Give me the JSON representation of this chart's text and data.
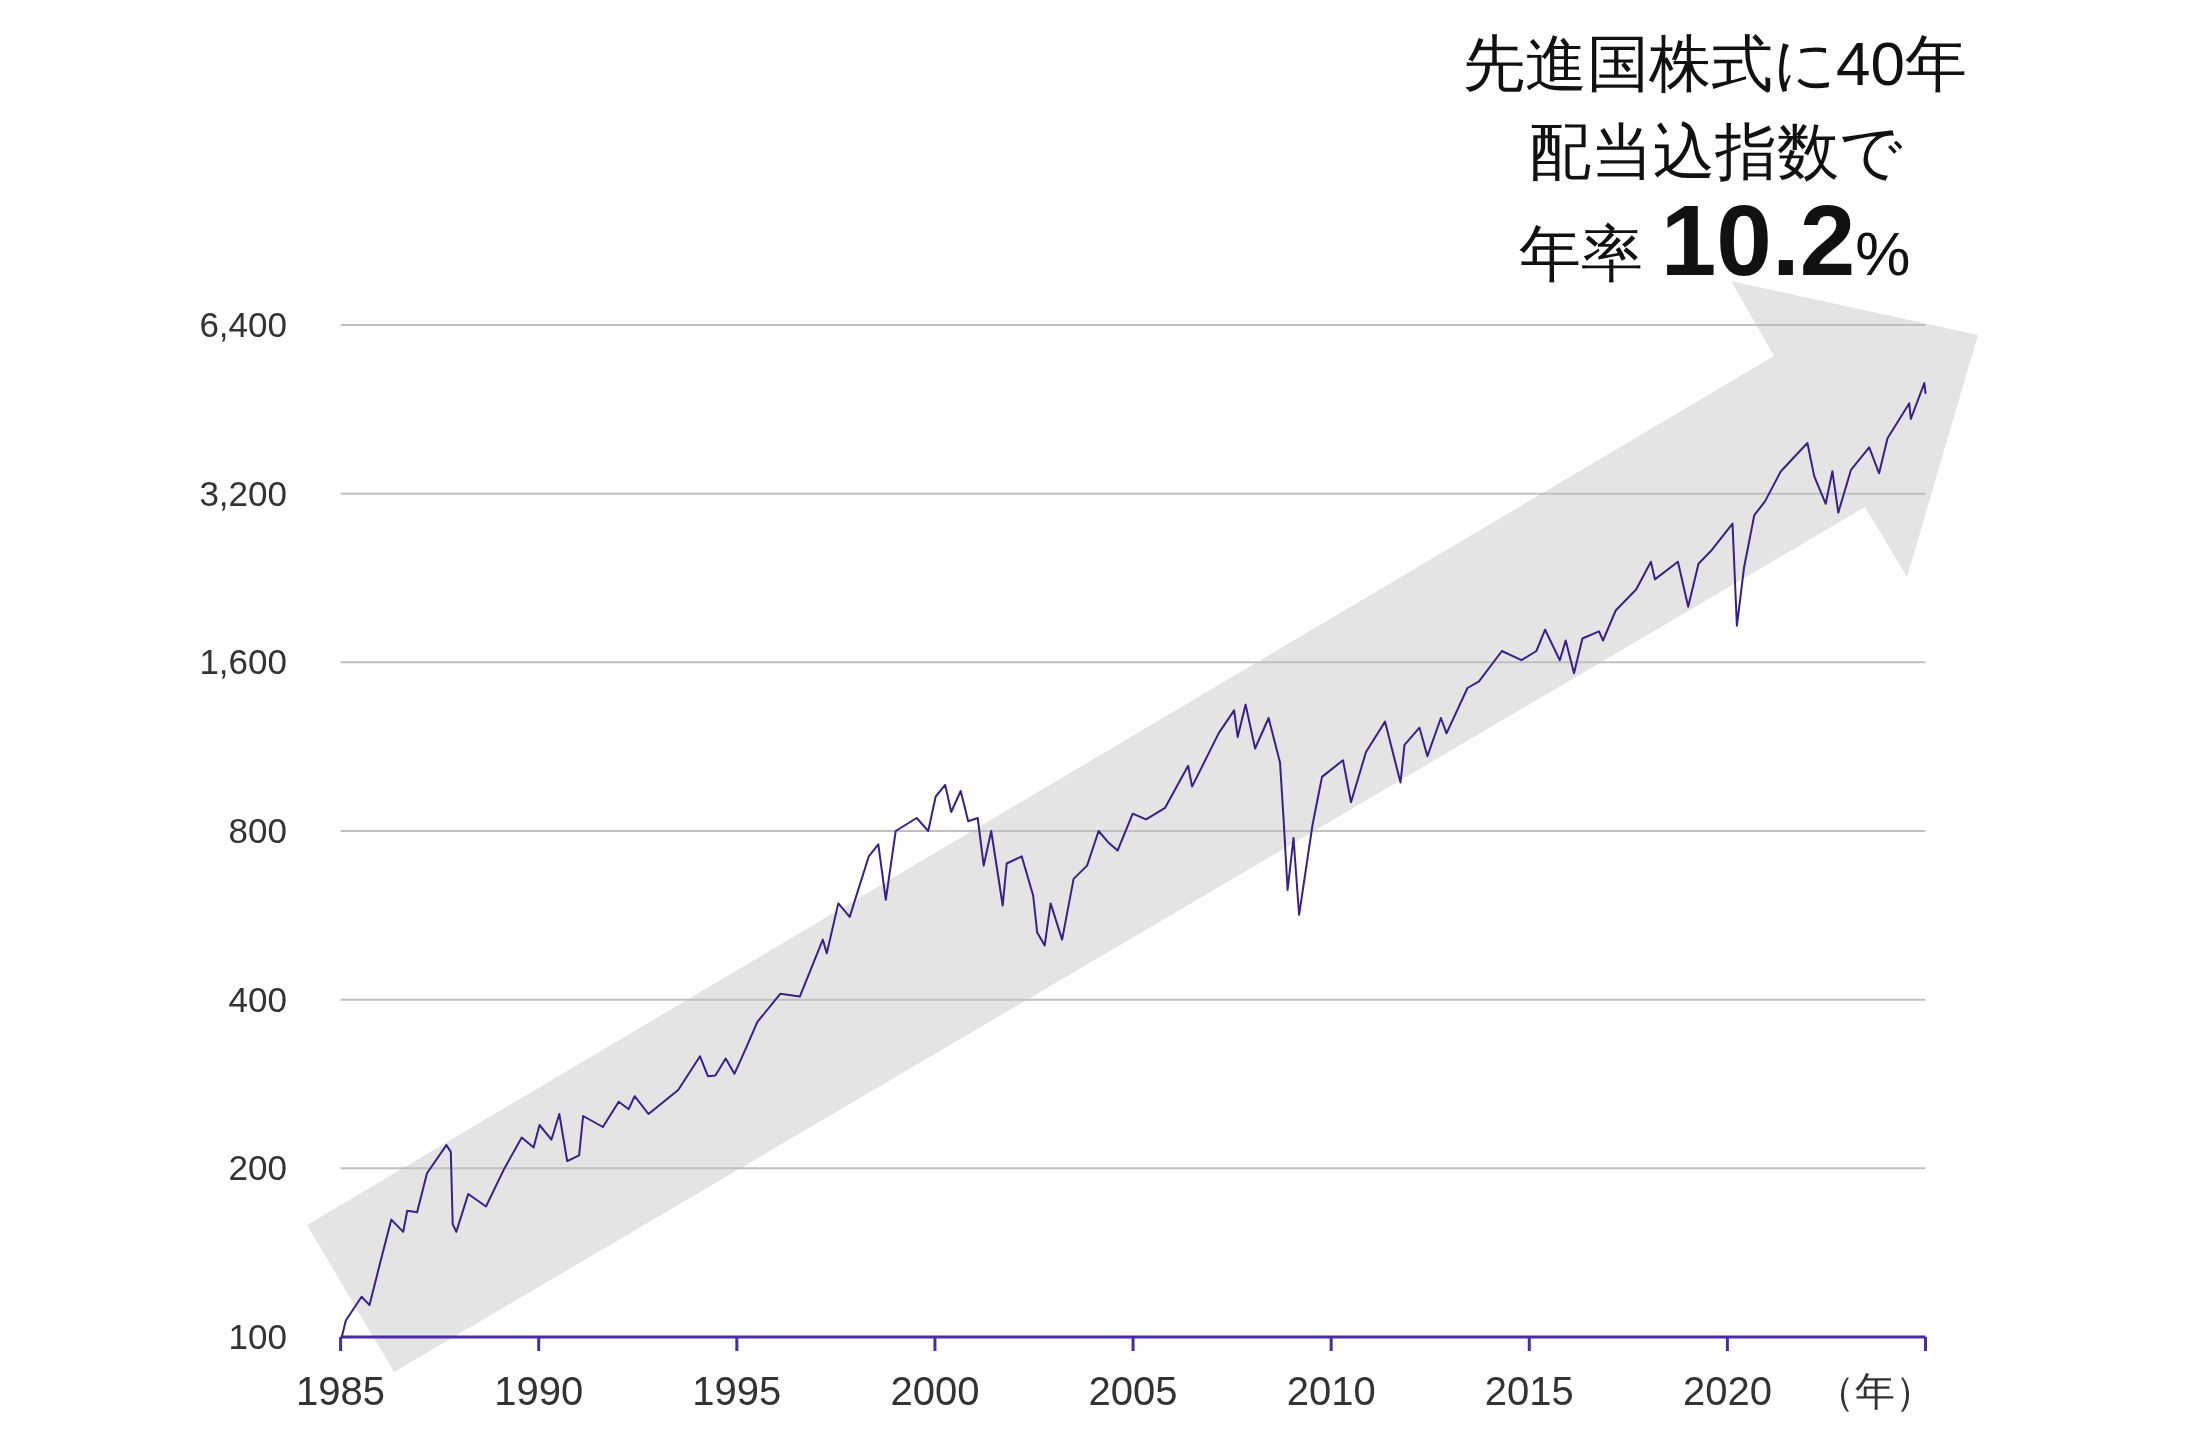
{
  "chart_data": {
    "type": "line",
    "title": "先進国株式に40年配当込指数で",
    "subtitle": "年率 10.2%",
    "xlabel": "（年）",
    "log": true,
    "grid": "y",
    "marker": "none",
    "line_style": "solid",
    "xlim": [
      1985,
      2025
    ],
    "xticks": [
      1985,
      1990,
      1995,
      2000,
      2005,
      2010,
      2015,
      2020,
      {
        "value": 2025,
        "label": null
      }
    ],
    "ylim": [
      100,
      6400
    ],
    "yticks": [
      100,
      200,
      400,
      800,
      {
        "value": 1600,
        "label": "1,600"
      },
      {
        "value": 3200,
        "label": "3,200"
      },
      {
        "value": 6400,
        "label": "6,400"
      }
    ],
    "series": [
      {
        "color": "#3b1e8a",
        "x": [
          1985.03,
          1985.13,
          1985.53,
          1985.73,
          1985.98,
          1986.28,
          1986.58,
          1986.68,
          1986.93,
          1987.18,
          1987.67,
          1987.78,
          1987.83,
          1987.92,
          1988.22,
          1988.67,
          1989.12,
          1989.57,
          1989.87,
          1990.02,
          1990.32,
          1990.52,
          1990.72,
          1991.02,
          1991.12,
          1991.62,
          1992.02,
          1992.27,
          1992.42,
          1992.77,
          1993.52,
          1994.07,
          1994.27,
          1994.46,
          1994.72,
          1994.94,
          1995.21,
          1995.52,
          1996.1,
          1996.59,
          1997.17,
          1997.27,
          1997.56,
          1997.85,
          1998.33,
          1998.57,
          1998.76,
          1999.01,
          1999.54,
          1999.83,
          2000.02,
          2000.26,
          2000.41,
          2000.65,
          2000.84,
          2001.08,
          2001.23,
          2001.42,
          2001.71,
          2001.81,
          2002.19,
          2002.48,
          2002.58,
          2002.77,
          2002.92,
          2003.21,
          2003.5,
          2003.84,
          2004.13,
          2004.37,
          2004.61,
          2004.99,
          2005.33,
          2005.81,
          2006.39,
          2006.49,
          2007.16,
          2007.55,
          2007.64,
          2007.84,
          2008.08,
          2008.42,
          2008.71,
          2008.8,
          2008.9,
          2009.05,
          2009.19,
          2009.53,
          2009.77,
          2010.3,
          2010.5,
          2010.88,
          2011.36,
          2011.75,
          2011.85,
          2012.23,
          2012.43,
          2012.77,
          2012.91,
          2013.44,
          2013.73,
          2014.31,
          2014.8,
          2015.18,
          2015.4,
          2015.77,
          2015.92,
          2016.13,
          2016.34,
          2016.76,
          2016.86,
          2017.18,
          2017.7,
          2018.07,
          2018.17,
          2018.75,
          2019.01,
          2019.27,
          2019.59,
          2020.13,
          2020.24,
          2020.42,
          2020.68,
          2020.95,
          2021.35,
          2022.02,
          2022.19,
          2022.48,
          2022.65,
          2022.8,
          2023.12,
          2023.58,
          2023.83,
          2024.04,
          2024.3,
          2024.59,
          2024.63,
          2024.97,
          2025.0
        ],
        "values": [
          100,
          107,
          118,
          114,
          134,
          162,
          154,
          168,
          167,
          196,
          220,
          214,
          159,
          154,
          180,
          171,
          199,
          227,
          218,
          239,
          225,
          250,
          206,
          211,
          248,
          237,
          263,
          255,
          269,
          250,
          276,
          317,
          292,
          293,
          314,
          295,
          325,
          365,
          410,
          405,
          512,
          484,
          594,
          562,
          721,
          757,
          603,
          800,
          844,
          800,
          922,
          967,
          865,
          943,
          833,
          844,
          694,
          800,
          589,
          700,
          721,
          613,
          527,
          500,
          594,
          512,
          657,
          694,
          800,
          764,
          738,
          859,
          839,
          880,
          1046,
          960,
          1195,
          1313,
          1177,
          1345,
          1123,
          1273,
          1060,
          839,
          628,
          777,
          567,
          820,
          999,
          1070,
          900,
          1107,
          1254,
          976,
          1140,
          1223,
          1088,
          1273,
          1195,
          1440,
          1480,
          1676,
          1614,
          1676,
          1830,
          1614,
          1750,
          1530,
          1765,
          1817,
          1750,
          1980,
          2160,
          2420,
          2250,
          2420,
          2010,
          2400,
          2530,
          2830,
          1860,
          2360,
          2930,
          3100,
          3510,
          3940,
          3440,
          3070,
          3510,
          2960,
          3530,
          3870,
          3480,
          4020,
          4300,
          4640,
          4350,
          5040,
          4840
        ]
      }
    ]
  }
}
